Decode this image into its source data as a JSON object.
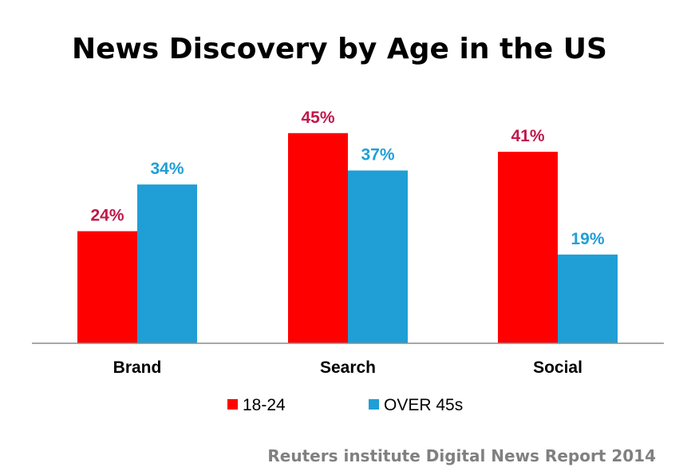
{
  "chart_data": {
    "type": "bar",
    "title": "News Discovery by Age in the US",
    "categories": [
      "Brand",
      "Search",
      "Social"
    ],
    "series": [
      {
        "name": "18-24",
        "values": [
          24,
          45,
          41
        ],
        "labels": [
          "24%",
          "45%",
          "41%"
        ],
        "color": "#ff0000",
        "label_color": "#c0184a"
      },
      {
        "name": "OVER 45s",
        "values": [
          34,
          37,
          19
        ],
        "labels": [
          "34%",
          "37%",
          "19%"
        ],
        "color": "#1f9fd6",
        "label_color": "#1f9fd6"
      }
    ],
    "ylim": [
      0,
      55
    ],
    "xlabel": "",
    "ylabel": "",
    "grid": false,
    "legend": "bottom-center",
    "source": "Reuters institute Digital News Report 2014"
  }
}
